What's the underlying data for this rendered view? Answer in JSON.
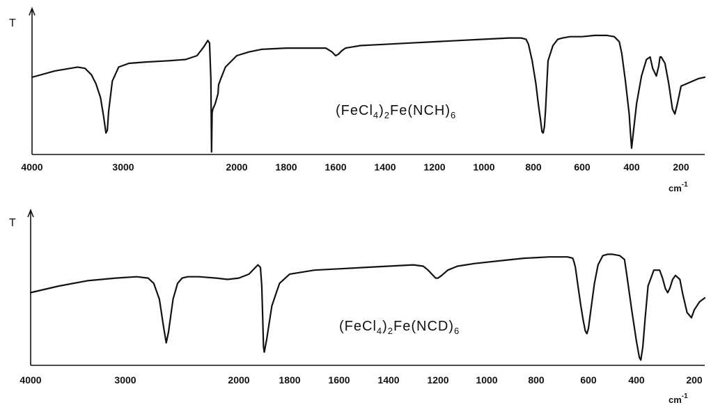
{
  "chart_data": [
    {
      "type": "line",
      "compound": {
        "parts": [
          "(FeCl",
          "4",
          ")",
          "2",
          "Fe(NCH)",
          "6"
        ]
      },
      "ylabel": "T",
      "xlabel": "cm",
      "xlabel_exp": "-1",
      "xlim": [
        4000,
        180
      ],
      "xtick_labels": [
        "4000",
        "3000",
        "2000",
        "1800",
        "1600",
        "1400",
        "1200",
        "1000",
        "800",
        "600",
        "400",
        "200"
      ],
      "xtick_values": [
        4000,
        3000,
        2000,
        1800,
        1600,
        1400,
        1200,
        1000,
        800,
        600,
        400,
        200
      ],
      "ylim": [
        0,
        1
      ],
      "series": [
        {
          "x": [
            4000,
            3750,
            3500,
            3420,
            3350,
            3300,
            3250,
            3215,
            3190,
            3175,
            3160,
            3120,
            3050,
            2950,
            2800,
            2600,
            2450,
            2350,
            2290,
            2255,
            2240,
            2228,
            2222,
            2217,
            2210,
            2190,
            2165,
            2160,
            2140,
            2100,
            2000,
            1950,
            1900,
            1800,
            1700,
            1640,
            1615,
            1600,
            1590,
            1575,
            1560,
            1500,
            1400,
            1300,
            1200,
            1100,
            1000,
            900,
            850,
            830,
            820,
            805,
            790,
            780,
            770,
            765,
            760,
            755,
            750,
            745,
            740,
            720,
            700,
            680,
            650,
            630,
            600,
            550,
            500,
            470,
            450,
            440,
            425,
            410,
            405,
            400,
            395,
            380,
            360,
            340,
            325,
            315,
            300,
            290,
            285,
            280,
            265,
            250,
            235,
            225,
            215,
            200,
            185,
            180
          ],
          "y": [
            0.61,
            0.66,
            0.69,
            0.68,
            0.63,
            0.56,
            0.45,
            0.3,
            0.17,
            0.19,
            0.34,
            0.58,
            0.69,
            0.72,
            0.73,
            0.74,
            0.75,
            0.78,
            0.85,
            0.9,
            0.88,
            0.6,
            0.02,
            0.33,
            0.36,
            0.4,
            0.48,
            0.55,
            0.6,
            0.69,
            0.78,
            0.81,
            0.83,
            0.84,
            0.84,
            0.84,
            0.81,
            0.78,
            0.79,
            0.82,
            0.84,
            0.86,
            0.87,
            0.88,
            0.89,
            0.9,
            0.91,
            0.92,
            0.92,
            0.91,
            0.87,
            0.74,
            0.56,
            0.4,
            0.26,
            0.18,
            0.17,
            0.22,
            0.36,
            0.56,
            0.74,
            0.86,
            0.91,
            0.92,
            0.93,
            0.93,
            0.93,
            0.94,
            0.94,
            0.93,
            0.89,
            0.8,
            0.58,
            0.32,
            0.18,
            0.05,
            0.14,
            0.4,
            0.62,
            0.75,
            0.77,
            0.68,
            0.62,
            0.7,
            0.77,
            0.77,
            0.72,
            0.56,
            0.36,
            0.32,
            0.4,
            0.54,
            0.6,
            0.61
          ]
        }
      ]
    },
    {
      "type": "line",
      "compound": {
        "parts": [
          "(FeCl",
          "4",
          ")",
          "2",
          "Fe(NCD)",
          "6"
        ]
      },
      "ylabel": "T",
      "xlabel": "cm",
      "xlabel_exp": "-1",
      "xlim": [
        4000,
        180
      ],
      "xtick_labels": [
        "4000",
        "3000",
        "2000",
        "1800",
        "1600",
        "1400",
        "1200",
        "1000",
        "800",
        "600",
        "400",
        "200"
      ],
      "xtick_values": [
        4000,
        3000,
        2000,
        1800,
        1600,
        1400,
        1200,
        1000,
        800,
        600,
        400,
        200
      ],
      "ylim": [
        0,
        1
      ],
      "series": [
        {
          "x": [
            4000,
            3700,
            3400,
            3100,
            2900,
            2800,
            2750,
            2700,
            2665,
            2640,
            2620,
            2580,
            2540,
            2500,
            2450,
            2350,
            2200,
            2100,
            2000,
            1960,
            1940,
            1925,
            1915,
            1910,
            1906,
            1903,
            1900,
            1890,
            1870,
            1840,
            1800,
            1700,
            1600,
            1500,
            1400,
            1300,
            1260,
            1240,
            1220,
            1210,
            1200,
            1185,
            1160,
            1120,
            1050,
            950,
            850,
            750,
            680,
            660,
            655,
            650,
            640,
            630,
            620,
            612,
            606,
            600,
            590,
            575,
            560,
            540,
            520,
            500,
            470,
            450,
            440,
            420,
            400,
            390,
            385,
            378,
            370,
            360,
            340,
            320,
            310,
            300,
            292,
            285,
            275,
            265,
            250,
            240,
            225,
            210,
            200,
            190,
            180
          ],
          "y": [
            0.55,
            0.6,
            0.64,
            0.66,
            0.67,
            0.66,
            0.62,
            0.5,
            0.3,
            0.17,
            0.25,
            0.5,
            0.62,
            0.66,
            0.67,
            0.67,
            0.66,
            0.65,
            0.66,
            0.69,
            0.73,
            0.76,
            0.74,
            0.6,
            0.35,
            0.14,
            0.1,
            0.2,
            0.45,
            0.62,
            0.69,
            0.72,
            0.73,
            0.74,
            0.75,
            0.76,
            0.75,
            0.72,
            0.68,
            0.66,
            0.66,
            0.68,
            0.72,
            0.75,
            0.77,
            0.79,
            0.81,
            0.82,
            0.82,
            0.81,
            0.78,
            0.74,
            0.6,
            0.46,
            0.34,
            0.26,
            0.24,
            0.28,
            0.42,
            0.62,
            0.76,
            0.83,
            0.84,
            0.84,
            0.83,
            0.8,
            0.68,
            0.42,
            0.18,
            0.06,
            0.04,
            0.14,
            0.36,
            0.6,
            0.72,
            0.72,
            0.66,
            0.58,
            0.55,
            0.58,
            0.65,
            0.68,
            0.65,
            0.54,
            0.4,
            0.36,
            0.42,
            0.48,
            0.51
          ]
        }
      ]
    }
  ]
}
